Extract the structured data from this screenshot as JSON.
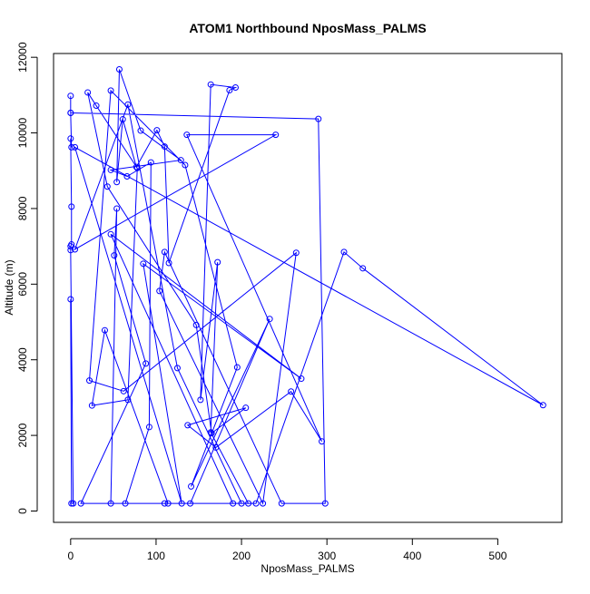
{
  "chart_data": {
    "type": "scatter",
    "title": "ATOM1 Northbound NposMass_PALMS",
    "xlabel": "NposMass_PALMS",
    "ylabel": "Altitude (m)",
    "xlim": [
      -20,
      575
    ],
    "ylim": [
      -300,
      12100
    ],
    "xticks": [
      "0",
      "100",
      "200",
      "300",
      "400",
      "500"
    ],
    "yticks": [
      "0",
      "2000",
      "4000",
      "6000",
      "8000",
      "10000",
      "12000"
    ],
    "grid": false,
    "legend": "none",
    "point_style": "open-circle",
    "connect_points": true,
    "series_color": "#0000ff",
    "points": [
      [
        0,
        5600
      ],
      [
        1,
        200
      ],
      [
        3,
        200
      ],
      [
        0,
        6900
      ],
      [
        0,
        7000
      ],
      [
        1,
        7050
      ],
      [
        1,
        8050
      ],
      [
        0,
        9850
      ],
      [
        1,
        9620
      ],
      [
        0,
        10530
      ],
      [
        0,
        10980
      ],
      [
        0,
        10530
      ],
      [
        290,
        10370
      ],
      [
        298,
        200
      ],
      [
        247,
        200
      ],
      [
        110,
        6850
      ],
      [
        104,
        5820
      ],
      [
        225,
        200
      ],
      [
        264,
        6830
      ],
      [
        62,
        3170
      ],
      [
        22,
        3450
      ],
      [
        47,
        11120
      ],
      [
        134,
        9150
      ],
      [
        195,
        3800
      ],
      [
        141,
        650
      ],
      [
        233,
        5080
      ],
      [
        140,
        200
      ],
      [
        12,
        200
      ],
      [
        88,
        3900
      ],
      [
        51,
        6760
      ],
      [
        54,
        8000
      ],
      [
        47,
        200
      ],
      [
        64,
        200
      ],
      [
        92,
        2220
      ],
      [
        94,
        9220
      ],
      [
        66,
        8850
      ],
      [
        47,
        9020
      ],
      [
        129,
        9280
      ],
      [
        82,
        10060
      ],
      [
        57,
        11680
      ],
      [
        54,
        8700
      ],
      [
        61,
        10360
      ],
      [
        77,
        9100
      ],
      [
        101,
        10070
      ],
      [
        110,
        9640
      ],
      [
        115,
        6560
      ],
      [
        186,
        11130
      ],
      [
        193,
        11200
      ],
      [
        164,
        11280
      ],
      [
        152,
        2940
      ],
      [
        172,
        6580
      ],
      [
        164,
        2080
      ],
      [
        208,
        200
      ],
      [
        110,
        200
      ],
      [
        114,
        200
      ],
      [
        40,
        4780
      ],
      [
        25,
        2790
      ],
      [
        67,
        2940
      ],
      [
        78,
        9070
      ],
      [
        30,
        10720
      ],
      [
        20,
        11070
      ],
      [
        43,
        8580
      ],
      [
        147,
        4920
      ],
      [
        165,
        2060
      ],
      [
        205,
        2730
      ],
      [
        137,
        2270
      ],
      [
        170,
        1680
      ],
      [
        258,
        3160
      ],
      [
        294,
        1840
      ],
      [
        136,
        9950
      ],
      [
        240,
        9950
      ],
      [
        5,
        6920
      ],
      [
        67,
        10750
      ],
      [
        125,
        3780
      ],
      [
        200,
        200
      ],
      [
        217,
        200
      ],
      [
        320,
        6850
      ],
      [
        342,
        6420
      ],
      [
        553,
        2800
      ],
      [
        5,
        9620
      ],
      [
        130,
        200
      ],
      [
        85,
        6540
      ],
      [
        270,
        3500
      ],
      [
        47,
        7320
      ],
      [
        190,
        200
      ]
    ]
  }
}
